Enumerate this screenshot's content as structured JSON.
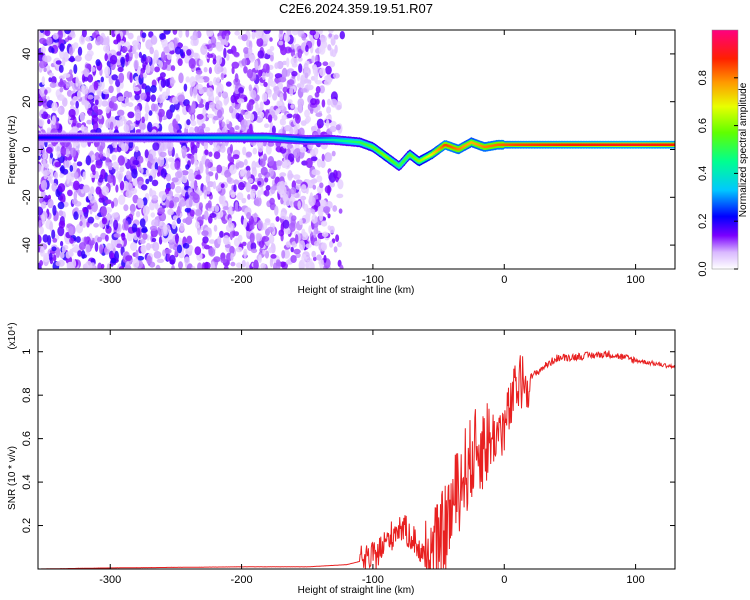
{
  "title": "C2E6.2024.359.19.51.R07",
  "chart_data": [
    {
      "type": "heatmap",
      "xlabel": "Height of straight line (km)",
      "ylabel": "Frequency (Hz)",
      "xlim": [
        -355,
        130
      ],
      "ylim": [
        -50,
        50
      ],
      "x_ticks": [
        -300,
        -200,
        -100,
        0,
        100
      ],
      "y_ticks": [
        -40,
        -20,
        0,
        20,
        40
      ],
      "colorbar": {
        "label": "Normalized spectral amplitude",
        "range": [
          0,
          1
        ],
        "ticks": [
          0.0,
          0.2,
          0.4,
          0.6,
          0.8
        ]
      },
      "ridge": {
        "description_points_x": [
          -355,
          -300,
          -260,
          -210,
          -180,
          -150,
          -130,
          -110,
          -100,
          -90,
          -80,
          -72,
          -65,
          -55,
          -45,
          -35,
          -25,
          -15,
          -5,
          10,
          50,
          100,
          130
        ],
        "frequency_hz": [
          5,
          5,
          5,
          5,
          5,
          4,
          4,
          3,
          1,
          -3,
          -7,
          -2,
          -5,
          -2,
          2,
          0,
          3,
          1,
          2,
          2,
          2,
          2,
          2
        ],
        "amplitude": [
          0.22,
          0.25,
          0.3,
          0.38,
          0.4,
          0.35,
          0.42,
          0.5,
          0.55,
          0.6,
          0.5,
          0.55,
          0.6,
          0.7,
          0.85,
          0.8,
          0.75,
          0.8,
          0.82,
          0.85,
          0.88,
          0.9,
          0.88
        ]
      },
      "noise_extent_x": [
        -355,
        -120
      ]
    },
    {
      "type": "line",
      "xlabel": "Height of straight line (km)",
      "ylabel": "SNR (10 * v/v)",
      "y_multiplier": "(x10⁴)",
      "xlim": [
        -355,
        130
      ],
      "ylim": [
        0,
        1.1
      ],
      "x_ticks": [
        -300,
        -200,
        -100,
        0,
        100
      ],
      "y_ticks": [
        0.2,
        0.4,
        0.6,
        0.8,
        1.0
      ],
      "series": [
        {
          "color": "#e82020",
          "x": [
            -355,
            -300,
            -200,
            -150,
            -120,
            -100,
            -90,
            -80,
            -70,
            -60,
            -50,
            -40,
            -30,
            -20,
            -10,
            0,
            10,
            20,
            30,
            40,
            60,
            80,
            100,
            130
          ],
          "y": [
            0.0,
            0.005,
            0.01,
            0.01,
            0.02,
            0.05,
            0.12,
            0.2,
            0.15,
            0.04,
            0.1,
            0.28,
            0.45,
            0.55,
            0.6,
            0.65,
            0.85,
            0.88,
            0.93,
            0.97,
            0.98,
            0.99,
            0.96,
            0.93
          ]
        }
      ]
    }
  ]
}
